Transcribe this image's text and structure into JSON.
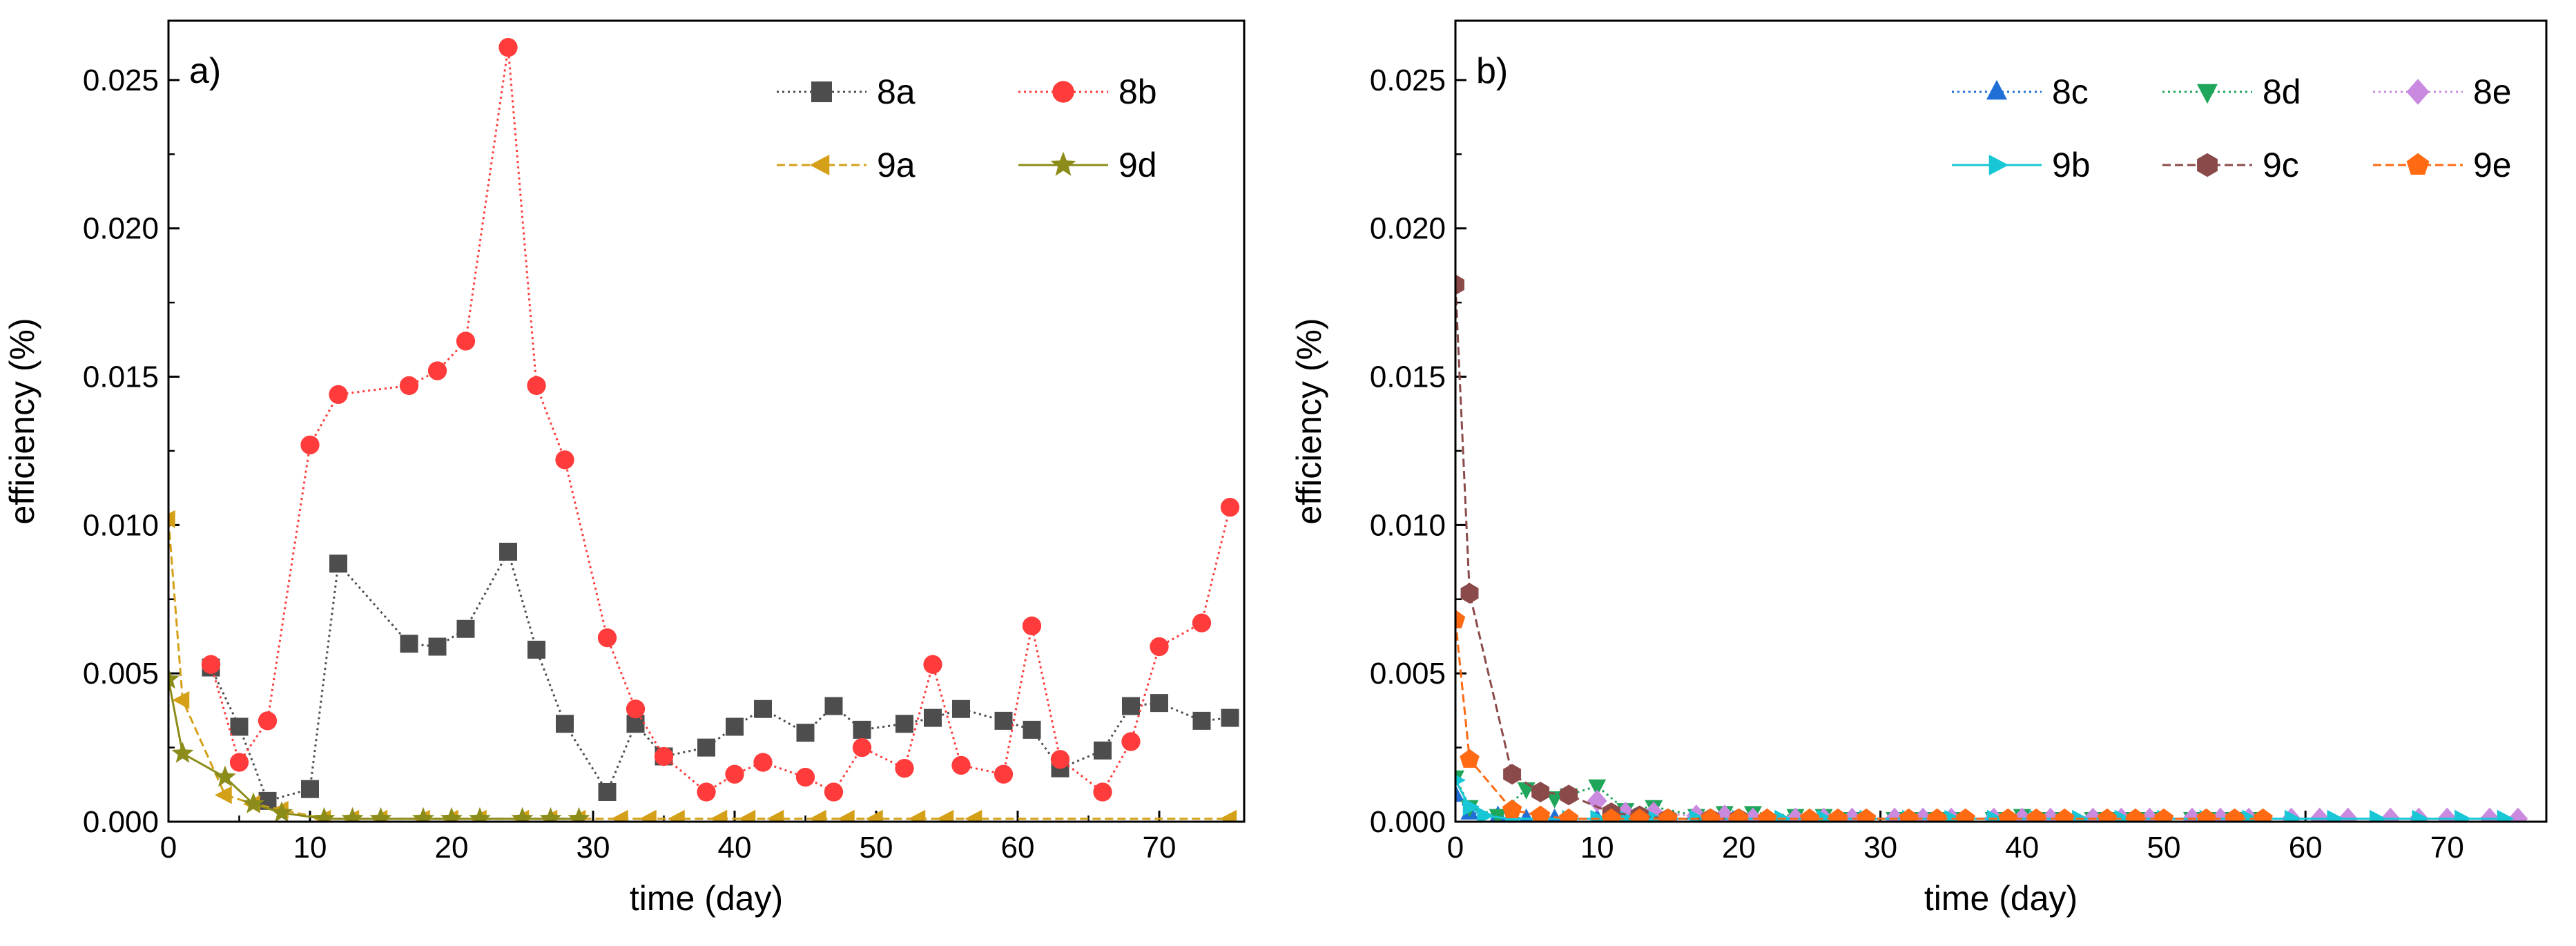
{
  "chart_data": [
    {
      "type": "line",
      "panel_label": "a)",
      "xlabel": "time (day)",
      "ylabel": "efficiency (%)",
      "xlim": [
        0,
        76
      ],
      "ylim": [
        0,
        0.027
      ],
      "xticks": [
        0,
        10,
        20,
        30,
        40,
        50,
        60,
        70
      ],
      "yticks": [
        0.0,
        0.005,
        0.01,
        0.015,
        0.02,
        0.025
      ],
      "ytick_labels": [
        "0.000",
        "0.005",
        "0.010",
        "0.015",
        "0.020",
        "0.025"
      ],
      "grid": false,
      "legend_position": "top-right",
      "legend_columns": 2,
      "series": [
        {
          "name": "8a",
          "color": "#4d4d4d",
          "marker": "square",
          "line": "dotted",
          "x": [
            3,
            5,
            7,
            10,
            12,
            17,
            19,
            21,
            24,
            26,
            28,
            31,
            33,
            35,
            38,
            40,
            42,
            45,
            47,
            49,
            52,
            54,
            56,
            59,
            61,
            63,
            66,
            68,
            70,
            73,
            75
          ],
          "y": [
            0.0052,
            0.0032,
            0.0007,
            0.0011,
            0.0087,
            0.006,
            0.0059,
            0.0065,
            0.0091,
            0.0058,
            0.0033,
            0.001,
            0.0033,
            0.0022,
            0.0025,
            0.0032,
            0.0038,
            0.003,
            0.0039,
            0.0031,
            0.0033,
            0.0035,
            0.0038,
            0.0034,
            0.0031,
            0.0018,
            0.0024,
            0.0039,
            0.004,
            0.0034,
            0.0035
          ]
        },
        {
          "name": "8b",
          "color": "#ff3b3b",
          "marker": "circle",
          "line": "dotted",
          "x": [
            3,
            5,
            7,
            10,
            12,
            17,
            19,
            21,
            24,
            26,
            28,
            31,
            33,
            35,
            38,
            40,
            42,
            45,
            47,
            49,
            52,
            54,
            56,
            59,
            61,
            63,
            66,
            68,
            70,
            73,
            75
          ],
          "y": [
            0.0053,
            0.002,
            0.0034,
            0.0127,
            0.0144,
            0.0147,
            0.0152,
            0.0162,
            0.0261,
            0.0147,
            0.0122,
            0.0062,
            0.0038,
            0.0022,
            0.001,
            0.0016,
            0.002,
            0.0015,
            0.001,
            0.0025,
            0.0018,
            0.0053,
            0.0019,
            0.0016,
            0.0066,
            0.0021,
            0.001,
            0.0027,
            0.0059,
            0.0067,
            0.0106
          ]
        },
        {
          "name": "9a",
          "color": "#d4a017",
          "marker": "triangle-left",
          "line": "dashed",
          "x": [
            0,
            1,
            4,
            6,
            8,
            11,
            13,
            15,
            18,
            20,
            22,
            25,
            27,
            29,
            32,
            34,
            36,
            39,
            41,
            43,
            46,
            48,
            50,
            53,
            55,
            57,
            75
          ],
          "y": [
            0.0102,
            0.0041,
            0.0009,
            0.0006,
            0.0004,
            0.0001,
            0.0001,
            0.0001,
            0.0001,
            0.0001,
            0.0001,
            0.0001,
            0.0001,
            0.0001,
            0.0001,
            0.0001,
            0.0001,
            0.0001,
            0.0001,
            0.0001,
            0.0001,
            0.0001,
            0.0001,
            0.0001,
            0.0001,
            0.0001,
            0.0001
          ]
        },
        {
          "name": "9d",
          "color": "#8c8c1a",
          "marker": "star",
          "line": "solid",
          "x": [
            0,
            1,
            4,
            6,
            8,
            11,
            13,
            15,
            18,
            20,
            22,
            25,
            27,
            29
          ],
          "y": [
            0.0048,
            0.0023,
            0.0015,
            0.0006,
            0.0003,
            0.0001,
            0.0001,
            0.0001,
            0.0001,
            0.0001,
            0.0001,
            0.0001,
            0.0001,
            0.0001
          ]
        }
      ]
    },
    {
      "type": "line",
      "panel_label": "b)",
      "xlabel": "time (day)",
      "ylabel": "efficiency (%)",
      "xlim": [
        0,
        77
      ],
      "ylim": [
        0,
        0.027
      ],
      "xticks": [
        0,
        10,
        20,
        30,
        40,
        50,
        60,
        70
      ],
      "yticks": [
        0.0,
        0.005,
        0.01,
        0.015,
        0.02,
        0.025
      ],
      "ytick_labels": [
        "0.000",
        "0.005",
        "0.010",
        "0.015",
        "0.020",
        "0.025"
      ],
      "grid": false,
      "legend_position": "top-right",
      "legend_columns": 3,
      "series": [
        {
          "name": "8c",
          "color": "#1f6fd6",
          "marker": "triangle-up",
          "line": "dotted",
          "x": [
            0,
            1,
            3,
            5,
            7,
            10,
            12,
            14,
            17,
            19,
            21,
            24,
            26,
            28,
            31,
            33,
            35,
            38,
            40,
            42,
            45,
            47,
            49,
            52,
            54,
            56
          ],
          "y": [
            0.0009,
            0.0003,
            0.0002,
            0.0001,
            0.0001,
            0.0001,
            0.0001,
            0.0001,
            0.0001,
            0.0001,
            0.0001,
            0.0001,
            0.0001,
            0.0001,
            0.0001,
            0.0001,
            0.0001,
            0.0001,
            0.0001,
            0.0001,
            0.0001,
            0.0001,
            0.0001,
            0.0001,
            0.0001,
            0.0001
          ]
        },
        {
          "name": "8d",
          "color": "#1fa65a",
          "marker": "triangle-down",
          "line": "dotted",
          "x": [
            0,
            1,
            3,
            5,
            7,
            8,
            10,
            12,
            14,
            17,
            19,
            21,
            24,
            26,
            28,
            31,
            33,
            35,
            38,
            40,
            42,
            45,
            47,
            49,
            52,
            54,
            56
          ],
          "y": [
            0.0015,
            0.0005,
            0.0002,
            0.0011,
            0.0008,
            0.0009,
            0.0012,
            0.0004,
            0.0005,
            0.0002,
            0.0003,
            0.0003,
            0.0002,
            0.0002,
            0.0001,
            0.0001,
            0.0001,
            0.0001,
            0.0001,
            0.0002,
            0.0001,
            0.0001,
            0.0001,
            0.0001,
            0.0001,
            0.0001,
            0.0001
          ]
        },
        {
          "name": "8e",
          "color": "#c98ae0",
          "marker": "diamond",
          "line": "dotted",
          "x": [
            10,
            12,
            14,
            17,
            19,
            21,
            24,
            26,
            28,
            31,
            33,
            35,
            38,
            40,
            42,
            45,
            47,
            49,
            52,
            54,
            56,
            59,
            61,
            63,
            66,
            68,
            70,
            73,
            75
          ],
          "y": [
            0.0007,
            0.0003,
            0.0003,
            0.0002,
            0.0002,
            0.0001,
            0.0001,
            0.0001,
            0.0001,
            0.0001,
            0.0001,
            0.0001,
            0.0001,
            0.0001,
            0.0001,
            0.0001,
            0.0001,
            0.0001,
            0.0001,
            0.0001,
            0.0001,
            0.0001,
            0.0001,
            0.0001,
            0.0001,
            0.0001,
            0.0001,
            0.0001,
            0.0001
          ]
        },
        {
          "name": "9b",
          "color": "#17c7d6",
          "marker": "triangle-right",
          "line": "solid",
          "x": [
            0,
            1,
            2,
            4,
            6,
            8,
            10,
            12,
            14,
            17,
            20,
            23,
            26,
            29,
            32,
            35,
            38,
            41,
            44,
            47,
            50,
            53,
            56,
            59,
            62,
            65,
            68,
            71,
            74
          ],
          "y": [
            0.0014,
            0.0005,
            0.0002,
            0.0001,
            0.0001,
            0.0001,
            0.0001,
            0.0001,
            0.0001,
            0.0001,
            0.0001,
            0.0001,
            0.0001,
            0.0001,
            0.0001,
            0.0001,
            0.0001,
            0.0001,
            0.0001,
            0.0001,
            0.0001,
            0.0001,
            0.0001,
            0.0001,
            0.0001,
            0.0001,
            0.0001,
            0.0001,
            0.0001
          ]
        },
        {
          "name": "9c",
          "color": "#8b4a4a",
          "marker": "hexagon",
          "line": "dashed",
          "x": [
            0,
            1,
            4,
            6,
            8,
            11,
            13,
            15,
            18,
            20
          ],
          "y": [
            0.0181,
            0.0077,
            0.0016,
            0.001,
            0.0009,
            0.0003,
            0.0002,
            0.0001,
            0.0001,
            0.0001
          ]
        },
        {
          "name": "9e",
          "color": "#ff6a13",
          "marker": "pentagon",
          "line": "dashed",
          "x": [
            0,
            1,
            4,
            6,
            8,
            11,
            13,
            15,
            18,
            20,
            22,
            25,
            27,
            29,
            32,
            34,
            36,
            39,
            41,
            43,
            46,
            48,
            50,
            53,
            55,
            57
          ],
          "y": [
            0.0068,
            0.0021,
            0.0004,
            0.0002,
            0.0001,
            0.0001,
            0.0001,
            0.0001,
            0.0001,
            0.0001,
            0.0001,
            0.0001,
            0.0001,
            0.0001,
            0.0001,
            0.0001,
            0.0001,
            0.0001,
            0.0001,
            0.0001,
            0.0001,
            0.0001,
            0.0001,
            0.0001,
            0.0001,
            0.0001
          ]
        }
      ]
    }
  ]
}
